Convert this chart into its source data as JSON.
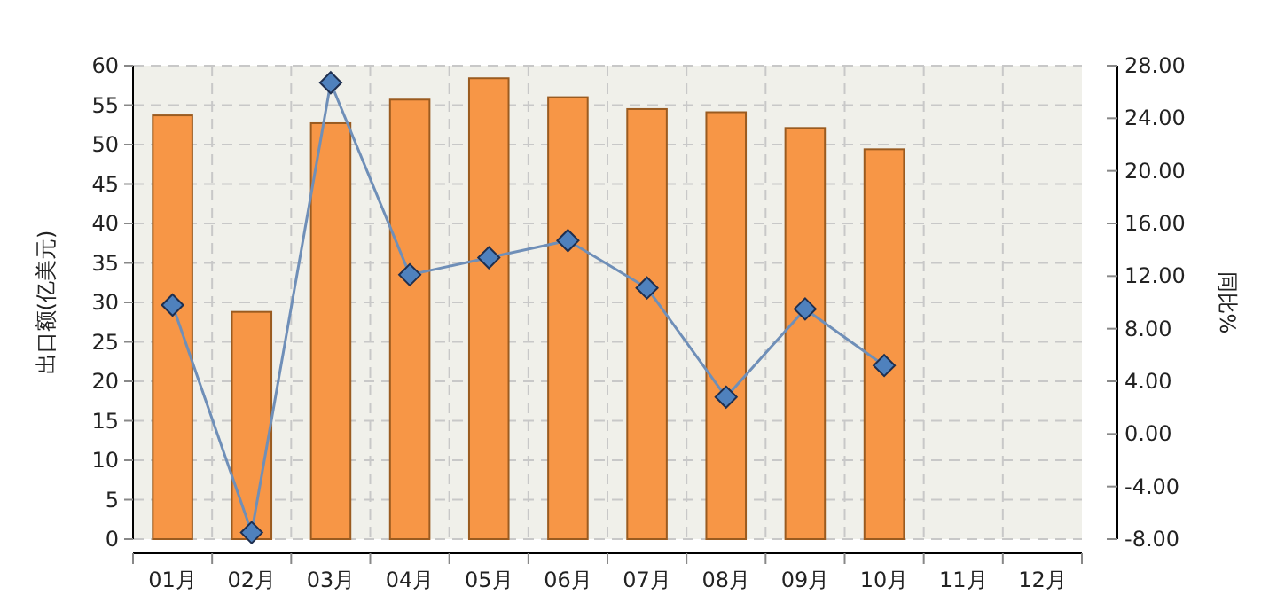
{
  "chart_data": {
    "type": "bar",
    "categories": [
      "01月",
      "02月",
      "03月",
      "04月",
      "05月",
      "06月",
      "07月",
      "08月",
      "09月",
      "10月",
      "11月",
      "12月"
    ],
    "series": [
      {
        "color": "#f79646",
        "values": [
          53.7,
          28.8,
          52.7,
          55.7,
          58.4,
          56.0,
          54.5,
          54.1,
          52.1,
          49.4,
          null,
          null
        ]
      },
      {
        "type": "line",
        "axis": "y2",
        "color": "#6f8fb8",
        "marker": "diamond",
        "values": [
          9.8,
          -7.5,
          26.7,
          12.1,
          13.4,
          14.7,
          11.1,
          2.8,
          9.5,
          5.2,
          null,
          null
        ]
      }
    ],
    "ylabel": "出口额(亿美元)",
    "y2label": "同比%",
    "ylim": [
      0,
      60
    ],
    "yticks": [
      0,
      5,
      10,
      15,
      20,
      25,
      30,
      35,
      40,
      45,
      50,
      55,
      60
    ],
    "y2lim": [
      -8,
      28
    ],
    "y2ticks": [
      {
        "value": -8,
        "label": "-8.00"
      },
      {
        "value": -4,
        "label": "-4.00"
      },
      {
        "value": 0,
        "label": "0.00"
      },
      {
        "value": 4,
        "label": "4.00"
      },
      {
        "value": 8,
        "label": "8.00"
      },
      {
        "value": 12,
        "label": "12.00"
      },
      {
        "value": 16,
        "label": "16.00"
      },
      {
        "value": 20,
        "label": "20.00"
      },
      {
        "value": 24,
        "label": "24.00"
      },
      {
        "value": 28,
        "label": "28.00"
      }
    ],
    "grid": true
  }
}
